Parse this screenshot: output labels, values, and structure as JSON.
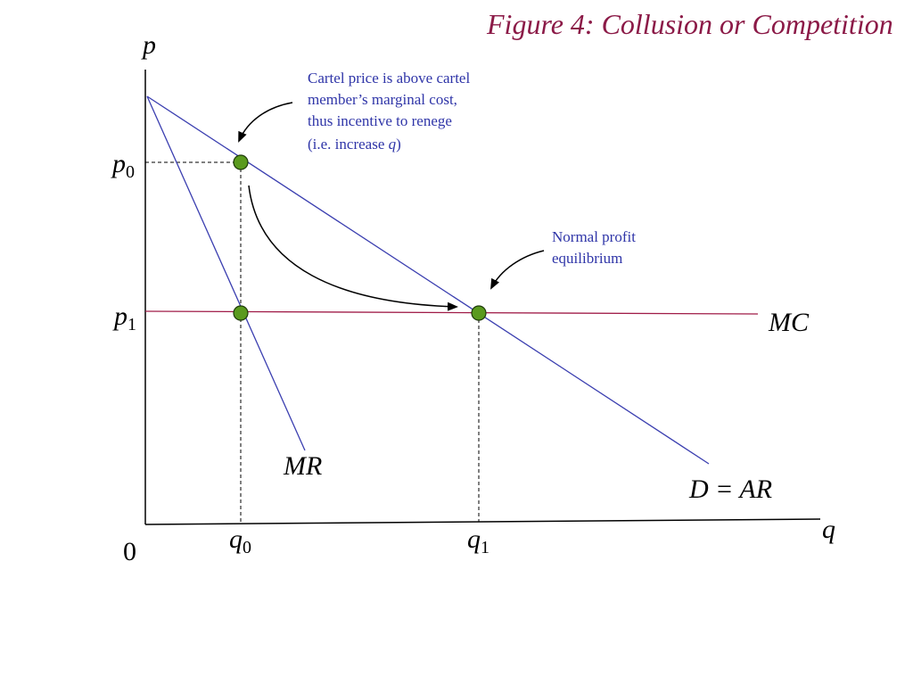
{
  "title": "Figure 4: Collusion or Competition",
  "colors": {
    "title": "#8b1a47",
    "demand_line": "#3b3fb0",
    "mr_line": "#3b3fb0",
    "mc_line": "#a01c48",
    "axis": "#000000",
    "annotation_text": "#2f35a8",
    "point_fill": "#5a9a1e",
    "point_stroke": "#1d3a08",
    "dashed_guide": "#000000"
  },
  "axes": {
    "y_label": "p",
    "x_label": "q",
    "origin_label": "0"
  },
  "levels": {
    "p0": {
      "base": "p",
      "sub": "0"
    },
    "p1": {
      "base": "p",
      "sub": "1"
    },
    "q0": {
      "base": "q",
      "sub": "0"
    },
    "q1": {
      "base": "q",
      "sub": "1"
    }
  },
  "curves": {
    "mc_label": "MC",
    "mr_label": "MR",
    "demand_label": "D = AR"
  },
  "annotations": {
    "cartel": {
      "line1": "Cartel price is above cartel",
      "line2": "member’s marginal cost,",
      "line3": "thus incentive to renege",
      "line4_prefix": "(i.e. increase ",
      "line4_var": "q",
      "line4_suffix": ")"
    },
    "normal_profit": {
      "line1": "Normal profit",
      "line2": "equilibrium"
    }
  },
  "points": [
    {
      "name": "cartel-price-point",
      "q": "q0",
      "p": "p0",
      "icon": "filled-circle"
    },
    {
      "name": "mr-mc-intersection-point",
      "q": "q0",
      "p": "p1",
      "icon": "filled-circle"
    },
    {
      "name": "competitive-equilibrium-point",
      "q": "q1",
      "p": "p1",
      "icon": "filled-circle"
    }
  ]
}
